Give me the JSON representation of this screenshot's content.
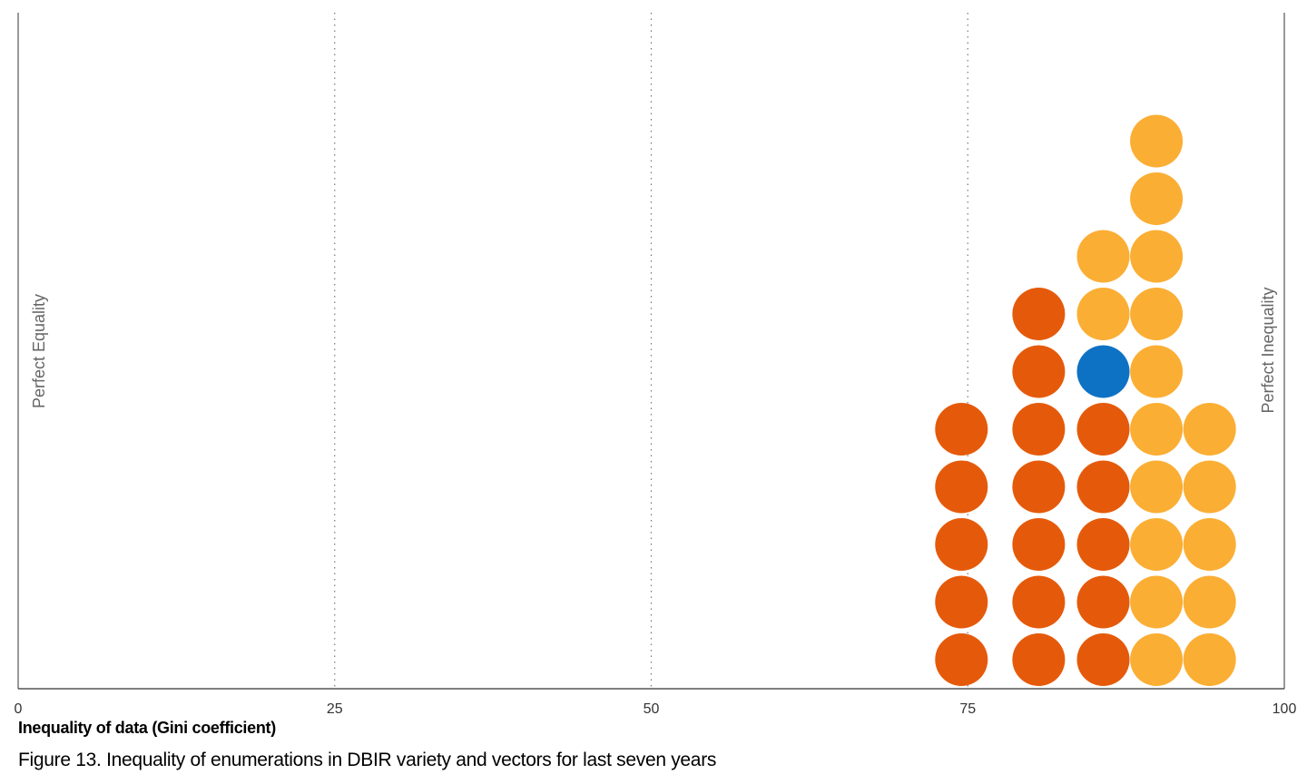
{
  "chart_data": {
    "type": "scatter",
    "subtype": "dot-plot",
    "xlabel": "Inequality of data (Gini coefficient)",
    "caption": "Figure 13. Inequality of enumerations in DBIR variety and vectors for last seven years",
    "xlim": [
      0,
      100
    ],
    "xticks": [
      "0",
      "25",
      "50",
      "75",
      "100"
    ],
    "gridlines": [
      25,
      50,
      75
    ],
    "grid": "dotted vertical",
    "annotations": {
      "left": "Perfect Equality",
      "right": "Perfect Inequality"
    },
    "colors": {
      "orange_dark": "#E55A0A",
      "orange_light": "#FBAE34",
      "blue": "#0E72C4",
      "axis": "#333333",
      "grid": "#777777"
    },
    "columns": [
      {
        "x": 74.5,
        "dots": [
          "orange_dark",
          "orange_dark",
          "orange_dark",
          "orange_dark",
          "orange_dark"
        ]
      },
      {
        "x": 80.6,
        "dots": [
          "orange_dark",
          "orange_dark",
          "orange_dark",
          "orange_dark",
          "orange_dark",
          "orange_dark",
          "orange_dark"
        ]
      },
      {
        "x": 85.7,
        "dots": [
          "orange_dark",
          "orange_dark",
          "orange_dark",
          "orange_dark",
          "orange_dark",
          "blue",
          "orange_light",
          "orange_light"
        ]
      },
      {
        "x": 89.9,
        "dots": [
          "orange_light",
          "orange_light",
          "orange_light",
          "orange_light",
          "orange_light",
          "orange_light",
          "orange_light",
          "orange_light",
          "orange_light",
          "orange_light"
        ]
      },
      {
        "x": 94.1,
        "dots": [
          "orange_light",
          "orange_light",
          "orange_light",
          "orange_light",
          "orange_light"
        ]
      }
    ]
  }
}
